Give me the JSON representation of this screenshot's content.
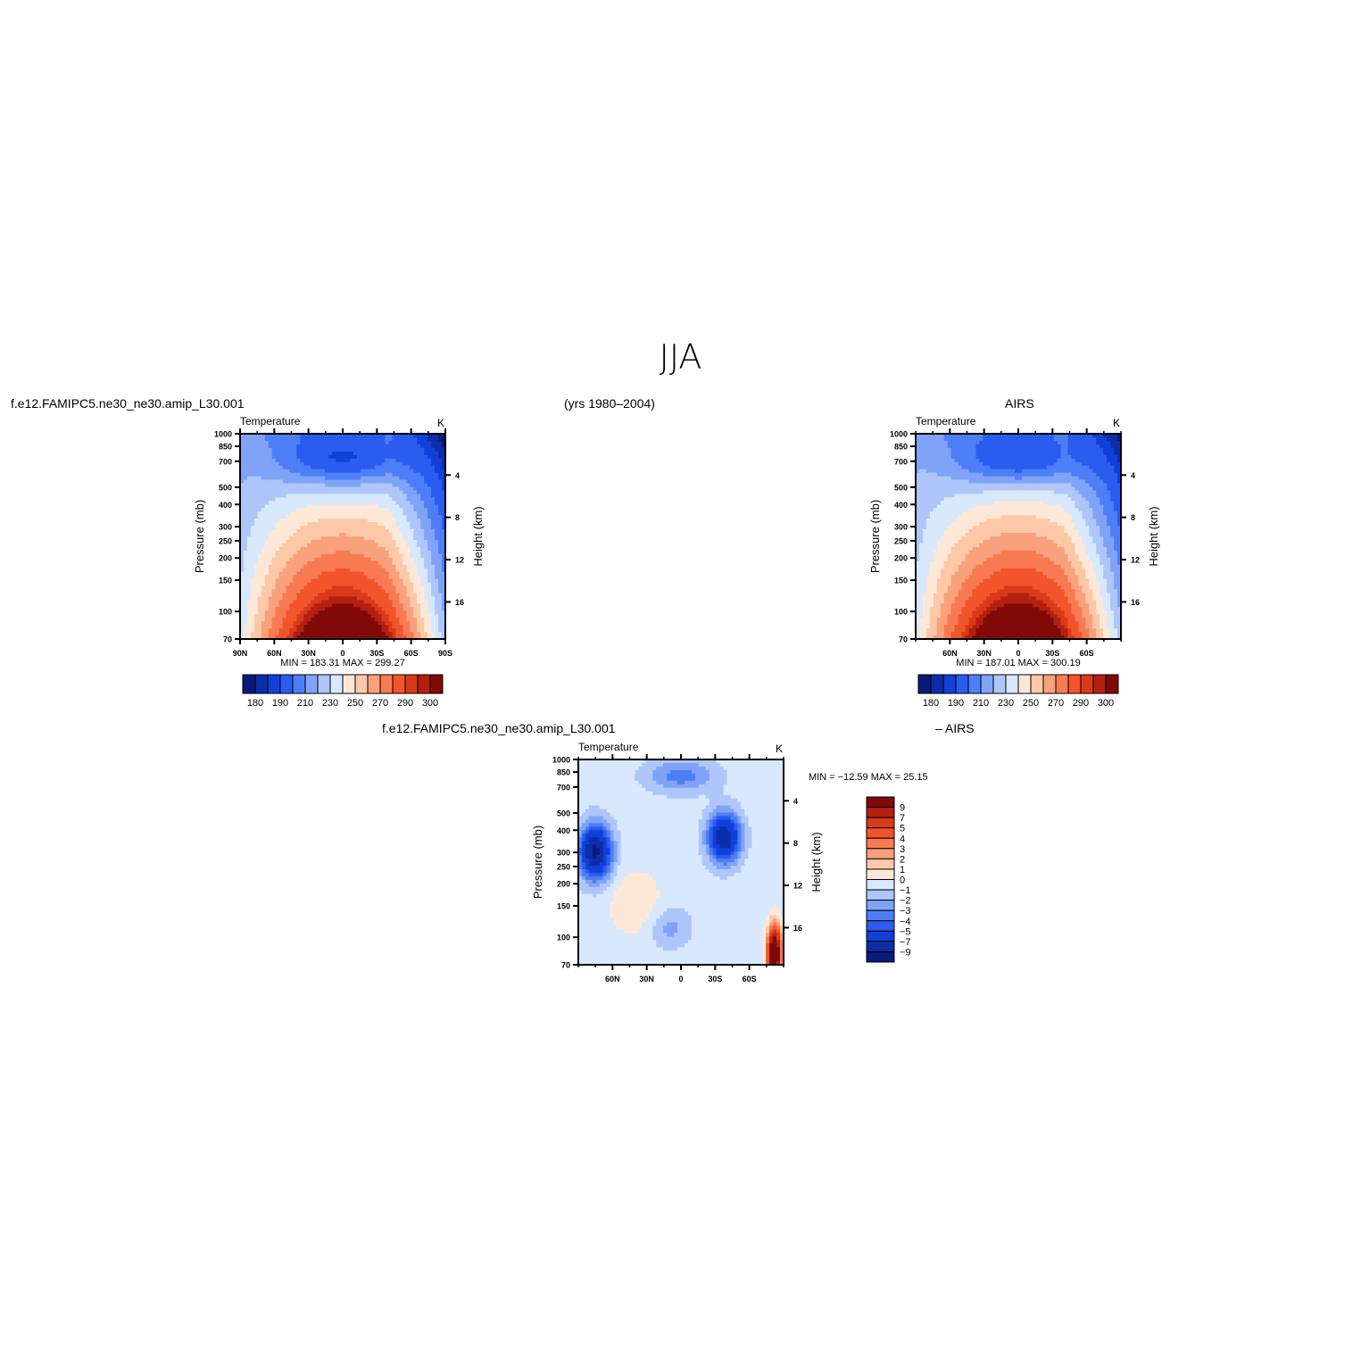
{
  "title": "JJA",
  "period": "(yrs 1980–2004)",
  "colors": {
    "palette": [
      "#0a1a7a",
      "#0d2ea8",
      "#1040d8",
      "#2a5cf0",
      "#4d7ef5",
      "#7fa3f7",
      "#aec6fa",
      "#d8e8fd",
      "#fde8d8",
      "#fcc8a8",
      "#f9a07c",
      "#f77a52",
      "#f2542c",
      "#d83a1a",
      "#b42010",
      "#800a08"
    ],
    "diff_palette": [
      "#0a1a7a",
      "#0d2ea8",
      "#1040d8",
      "#2a5cf0",
      "#4d7ef5",
      "#7fa3f7",
      "#aec6fa",
      "#d8e8fd",
      "#fde8d8",
      "#fcc8a8",
      "#f9a07c",
      "#f77a52",
      "#f2542c",
      "#d83a1a",
      "#b42010",
      "#800a08"
    ]
  },
  "panels": {
    "model": {
      "case": "f.e12.FAMIPC5.ne30_ne30.amip_L30.001",
      "variable": "Temperature",
      "units": "K",
      "minmax": "MIN = 183.31   MAX = 299.27",
      "ylabel": "Pressure (mb)",
      "y2label": "Height (km)",
      "colorbar_labels": [
        "180",
        "190",
        "210",
        "230",
        "250",
        "270",
        "290",
        "300"
      ]
    },
    "obs": {
      "case": "AIRS",
      "variable": "Temperature",
      "units": "K",
      "minmax": "MIN = 187.01   MAX = 300.19",
      "ylabel": "Pressure (mb)",
      "y2label": "Height (km)",
      "colorbar_labels": [
        "180",
        "190",
        "210",
        "230",
        "250",
        "270",
        "290",
        "300"
      ]
    },
    "diff": {
      "case": "f.e12.FAMIPC5.ne30_ne30.amip_L30.001",
      "case2": "– AIRS",
      "variable": "Temperature",
      "units": "K",
      "minmax": "MIN = −12.59   MAX =  25.15",
      "ylabel": "Pressure (mb)",
      "y2label": "Height (km)",
      "colorbar_labels": [
        "9",
        "7",
        "5",
        "4",
        "3",
        "2",
        "1",
        "0",
        "−1",
        "−2",
        "−3",
        "−4",
        "−5",
        "−7",
        "−9"
      ]
    }
  },
  "chart_data": [
    {
      "type": "heatmap",
      "title": "Temperature",
      "units": "K",
      "x_ticks": [
        "90N",
        "60N",
        "30N",
        "0",
        "30S",
        "60S",
        "90S"
      ],
      "y_ticks": [
        "70",
        "100",
        "150",
        "200",
        "250",
        "300",
        "400",
        "500",
        "700",
        "850",
        "1000"
      ],
      "y2_ticks": [
        "16",
        "12",
        "8",
        "4"
      ],
      "ylim": [
        1000,
        70
      ],
      "value_range": [
        183.31,
        299.27
      ],
      "levels": [
        180,
        185,
        190,
        200,
        210,
        220,
        230,
        240,
        250,
        260,
        270,
        280,
        290,
        295,
        300
      ],
      "grid": false
    },
    {
      "type": "heatmap",
      "title": "Temperature",
      "units": "K",
      "x_ticks": [
        "60N",
        "30N",
        "0",
        "30S",
        "60S"
      ],
      "y_ticks": [
        "70",
        "100",
        "150",
        "200",
        "250",
        "300",
        "400",
        "500",
        "700",
        "850",
        "1000"
      ],
      "y2_ticks": [
        "16",
        "12",
        "8",
        "4"
      ],
      "ylim": [
        1000,
        70
      ],
      "value_range": [
        187.01,
        300.19
      ],
      "levels": [
        180,
        185,
        190,
        200,
        210,
        220,
        230,
        240,
        250,
        260,
        270,
        280,
        290,
        295,
        300
      ],
      "grid": false
    },
    {
      "type": "heatmap",
      "title": "Temperature",
      "units": "K",
      "x_ticks": [
        "60N",
        "30N",
        "0",
        "30S",
        "60S"
      ],
      "y_ticks": [
        "70",
        "100",
        "150",
        "200",
        "250",
        "300",
        "400",
        "500",
        "700",
        "850",
        "1000"
      ],
      "y2_ticks": [
        "16",
        "12",
        "8",
        "4"
      ],
      "ylim": [
        1000,
        70
      ],
      "value_range": [
        -12.59,
        25.15
      ],
      "levels": [
        -9,
        -7,
        -5,
        -4,
        -3,
        -2,
        -1,
        0,
        1,
        2,
        3,
        4,
        5,
        7,
        9
      ],
      "grid": false
    }
  ]
}
